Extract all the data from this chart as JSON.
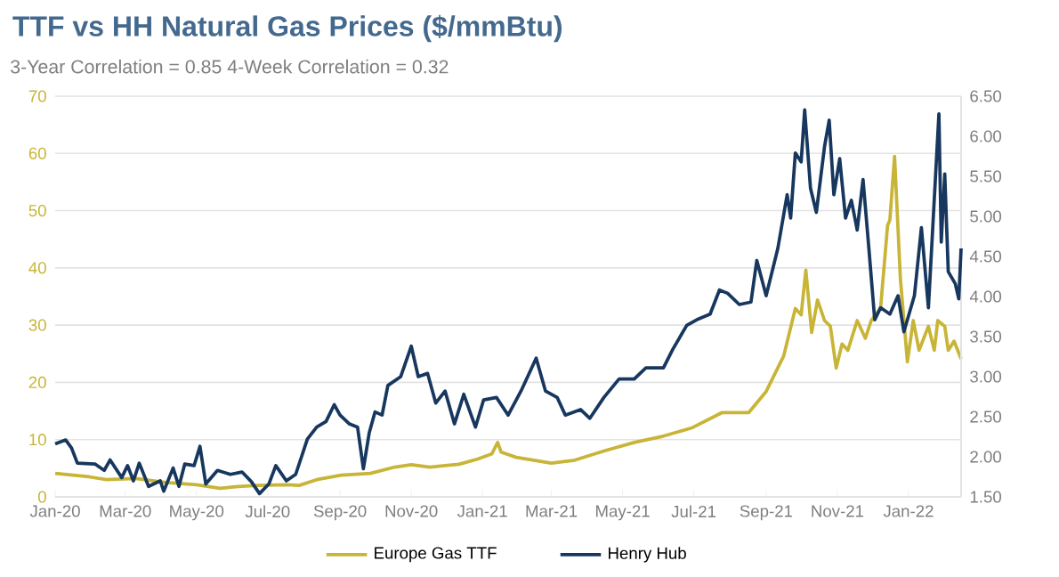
{
  "chart_data": {
    "type": "line",
    "title": "TTF vs HH Natural Gas Prices ($/mmBtu)",
    "subtitle": "3-Year Correlation = 0.85     4-Week Correlation = 0.32",
    "xlim": [
      "2020-01-01",
      "2022-02-15"
    ],
    "xticks": [
      {
        "value": "2020-01-01",
        "label": "Jan-20"
      },
      {
        "value": "2020-03-01",
        "label": "Mar-20"
      },
      {
        "value": "2020-05-01",
        "label": "May-20"
      },
      {
        "value": "2020-07-01",
        "label": "Jul-20"
      },
      {
        "value": "2020-09-01",
        "label": "Sep-20"
      },
      {
        "value": "2020-11-01",
        "label": "Nov-20"
      },
      {
        "value": "2021-01-01",
        "label": "Jan-21"
      },
      {
        "value": "2021-03-01",
        "label": "Mar-21"
      },
      {
        "value": "2021-05-01",
        "label": "May-21"
      },
      {
        "value": "2021-07-01",
        "label": "Jul-21"
      },
      {
        "value": "2021-09-01",
        "label": "Sep-21"
      },
      {
        "value": "2021-11-01",
        "label": "Nov-21"
      },
      {
        "value": "2022-01-01",
        "label": "Jan-22"
      }
    ],
    "ylim": [
      0,
      70
    ],
    "yticks": [
      0,
      10,
      20,
      30,
      40,
      50,
      60,
      70
    ],
    "y2lim": [
      1.5,
      6.5
    ],
    "y2ticks": [
      {
        "value": 1.5,
        "label": "1.50"
      },
      {
        "value": 2.0,
        "label": "2.00"
      },
      {
        "value": 2.5,
        "label": "2.50"
      },
      {
        "value": 3.0,
        "label": "3.00"
      },
      {
        "value": 3.5,
        "label": "3.50"
      },
      {
        "value": 4.0,
        "label": "4.00"
      },
      {
        "value": 4.5,
        "label": "4.50"
      },
      {
        "value": 5.0,
        "label": "5.00"
      },
      {
        "value": 5.5,
        "label": "5.50"
      },
      {
        "value": 6.0,
        "label": "6.00"
      },
      {
        "value": 6.5,
        "label": "6.50"
      }
    ],
    "grid": "y",
    "legend": "bottom",
    "marker": "none",
    "line_style": "solid",
    "series": [
      {
        "name": "Europe Gas TTF",
        "color": "#c8b537",
        "x": [
          "2020-01-01",
          "2020-01-30",
          "2020-02-14",
          "2020-03-10",
          "2020-04-05",
          "2020-05-01",
          "2020-05-21",
          "2020-06-06",
          "2020-06-22",
          "2020-07-18",
          "2020-07-28",
          "2020-08-12",
          "2020-09-02",
          "2020-09-27",
          "2020-10-18",
          "2020-11-01",
          "2020-11-17",
          "2020-12-12",
          "2020-12-28",
          "2021-01-09",
          "2021-01-14",
          "2021-01-17",
          "2021-01-30",
          "2021-02-14",
          "2021-03-01",
          "2021-03-21",
          "2021-04-15",
          "2021-05-11",
          "2021-06-05",
          "2021-06-30",
          "2021-07-25",
          "2021-08-17",
          "2021-09-01",
          "2021-09-16",
          "2021-09-26",
          "2021-10-01",
          "2021-10-05",
          "2021-10-10",
          "2021-10-15",
          "2021-10-21",
          "2021-10-26",
          "2021-10-31",
          "2021-11-05",
          "2021-11-10",
          "2021-11-18",
          "2021-11-25",
          "2021-11-30",
          "2021-12-08",
          "2021-12-14",
          "2021-12-16",
          "2021-12-20",
          "2021-12-25",
          "2021-12-31",
          "2022-01-05",
          "2022-01-10",
          "2022-01-18",
          "2022-01-23",
          "2022-01-26",
          "2022-02-01",
          "2022-02-04",
          "2022-02-09",
          "2022-02-15"
        ],
        "values": [
          4.1,
          3.5,
          3.0,
          3.2,
          2.5,
          2.1,
          1.5,
          1.8,
          2.0,
          2.1,
          2.0,
          3.0,
          3.8,
          4.1,
          5.2,
          5.6,
          5.2,
          5.7,
          6.6,
          7.5,
          9.5,
          7.8,
          6.9,
          6.4,
          5.9,
          6.4,
          8.0,
          9.5,
          10.6,
          12.1,
          14.7,
          14.7,
          18.4,
          24.6,
          32.9,
          31.8,
          39.6,
          28.7,
          34.4,
          30.8,
          29.8,
          22.5,
          26.7,
          25.6,
          30.8,
          27.7,
          30.8,
          32.9,
          47.4,
          48.4,
          59.5,
          38.1,
          23.6,
          30.8,
          25.6,
          29.8,
          25.6,
          30.8,
          29.8,
          25.6,
          27.2,
          24.1
        ]
      },
      {
        "name": "Henry Hub",
        "color": "#17375e",
        "axis": "y2",
        "x": [
          "2020-01-01",
          "2020-01-10",
          "2020-01-15",
          "2020-01-20",
          "2020-02-04",
          "2020-02-12",
          "2020-02-17",
          "2020-02-27",
          "2020-03-03",
          "2020-03-08",
          "2020-03-13",
          "2020-03-21",
          "2020-03-31",
          "2020-04-03",
          "2020-04-11",
          "2020-04-16",
          "2020-04-21",
          "2020-04-29",
          "2020-05-04",
          "2020-05-09",
          "2020-05-19",
          "2020-05-30",
          "2020-06-09",
          "2020-06-17",
          "2020-06-24",
          "2020-07-02",
          "2020-07-08",
          "2020-07-17",
          "2020-07-25",
          "2020-07-30",
          "2020-08-04",
          "2020-08-12",
          "2020-08-20",
          "2020-08-27",
          "2020-09-01",
          "2020-09-09",
          "2020-09-16",
          "2020-09-21",
          "2020-09-26",
          "2020-10-01",
          "2020-10-07",
          "2020-10-12",
          "2020-10-23",
          "2020-11-01",
          "2020-11-07",
          "2020-11-15",
          "2020-11-22",
          "2020-11-30",
          "2020-12-08",
          "2020-12-16",
          "2020-12-26",
          "2021-01-02",
          "2021-01-13",
          "2021-01-23",
          "2021-02-03",
          "2021-02-16",
          "2021-02-24",
          "2021-03-06",
          "2021-03-13",
          "2021-03-26",
          "2021-04-03",
          "2021-04-15",
          "2021-04-28",
          "2021-05-11",
          "2021-05-21",
          "2021-06-05",
          "2021-06-13",
          "2021-06-25",
          "2021-07-05",
          "2021-07-15",
          "2021-07-23",
          "2021-07-30",
          "2021-08-09",
          "2021-08-19",
          "2021-08-24",
          "2021-09-01",
          "2021-09-11",
          "2021-09-19",
          "2021-09-22",
          "2021-09-26",
          "2021-10-01",
          "2021-10-04",
          "2021-10-09",
          "2021-10-14",
          "2021-10-21",
          "2021-10-25",
          "2021-10-29",
          "2021-11-03",
          "2021-11-08",
          "2021-11-13",
          "2021-11-18",
          "2021-11-23",
          "2021-11-28",
          "2021-12-03",
          "2021-12-08",
          "2021-12-16",
          "2021-12-23",
          "2021-12-28",
          "2022-01-06",
          "2022-01-12",
          "2022-01-18",
          "2022-01-27",
          "2022-01-29",
          "2022-02-01",
          "2022-02-04",
          "2022-02-10",
          "2022-02-13",
          "2022-02-15"
        ],
        "values": [
          2.16,
          2.21,
          2.11,
          1.92,
          1.91,
          1.83,
          1.96,
          1.74,
          1.89,
          1.7,
          1.92,
          1.63,
          1.7,
          1.57,
          1.86,
          1.63,
          1.91,
          1.89,
          2.13,
          1.66,
          1.83,
          1.78,
          1.81,
          1.69,
          1.54,
          1.66,
          1.89,
          1.7,
          1.78,
          2.0,
          2.22,
          2.37,
          2.44,
          2.65,
          2.52,
          2.41,
          2.37,
          1.85,
          2.3,
          2.56,
          2.52,
          2.89,
          3.0,
          3.38,
          3.0,
          3.04,
          2.67,
          2.82,
          2.41,
          2.78,
          2.37,
          2.71,
          2.74,
          2.52,
          2.82,
          3.23,
          2.82,
          2.74,
          2.52,
          2.59,
          2.48,
          2.74,
          2.97,
          2.97,
          3.11,
          3.11,
          3.34,
          3.64,
          3.72,
          3.78,
          4.08,
          4.04,
          3.9,
          3.93,
          4.45,
          4.01,
          4.6,
          5.27,
          4.98,
          5.79,
          5.68,
          6.33,
          5.35,
          5.05,
          5.87,
          6.2,
          5.27,
          5.72,
          4.98,
          5.2,
          4.83,
          5.46,
          4.6,
          3.71,
          3.86,
          3.78,
          4.01,
          3.56,
          4.01,
          4.86,
          3.86,
          6.28,
          4.68,
          5.53,
          4.31,
          4.16,
          3.97,
          4.6
        ]
      }
    ]
  }
}
